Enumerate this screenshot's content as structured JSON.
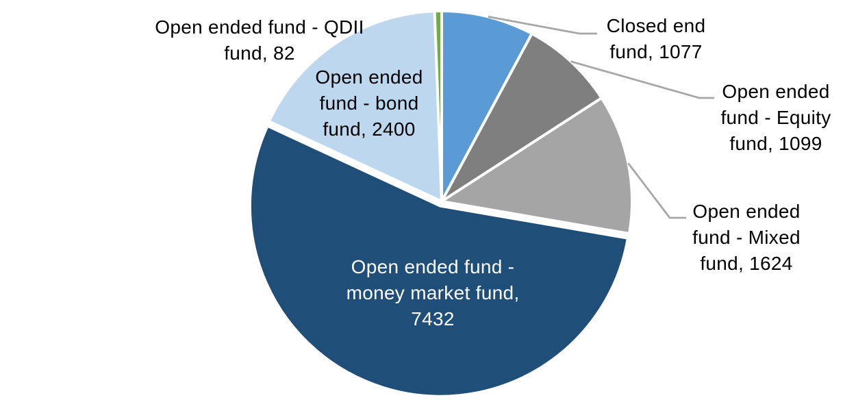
{
  "chart_data": {
    "type": "pie",
    "title": "",
    "start_angle_deg": 0,
    "direction": "clockwise",
    "background_color": "#FFFFFF",
    "leader_line_color": "#A6A6A6",
    "slice_gap_color": "#FFFFFF",
    "slices": [
      {
        "name": "Closed end fund",
        "value": 1077,
        "color": "#5B9BD5",
        "label_lines": [
          "Closed end",
          "fund, 1077"
        ],
        "label_position": "outside",
        "label_color": "#000000",
        "leader_line": true
      },
      {
        "name": "Open ended fund - Equity fund",
        "value": 1099,
        "color": "#7F7F7F",
        "label_lines": [
          "Open ended",
          "fund - Equity",
          "fund, 1099"
        ],
        "label_position": "outside",
        "label_color": "#000000",
        "leader_line": true
      },
      {
        "name": "Open ended fund - Mixed fund",
        "value": 1624,
        "color": "#A5A5A5",
        "label_lines": [
          "Open ended",
          "fund - Mixed",
          "fund, 1624"
        ],
        "label_position": "outside",
        "label_color": "#000000",
        "leader_line": true
      },
      {
        "name": "Open ended fund - money market fund",
        "value": 7432,
        "color": "#1F4E79",
        "label_lines": [
          "Open ended fund -",
          "money market fund,",
          "7432"
        ],
        "label_position": "inside",
        "label_color": "#FFFFFF",
        "leader_line": false
      },
      {
        "name": "Open ended fund - bond fund",
        "value": 2400,
        "color": "#BDD7EE",
        "label_lines": [
          "Open ended",
          "fund - bond",
          "fund, 2400"
        ],
        "label_position": "inside",
        "label_color": "#000000",
        "leader_line": false
      },
      {
        "name": "Open ended fund - QDII fund",
        "value": 82,
        "color": "#70AD47",
        "label_lines": [
          "Open ended fund - QDII",
          "fund, 82"
        ],
        "label_position": "outside",
        "label_color": "#000000",
        "leader_line": false
      }
    ]
  }
}
